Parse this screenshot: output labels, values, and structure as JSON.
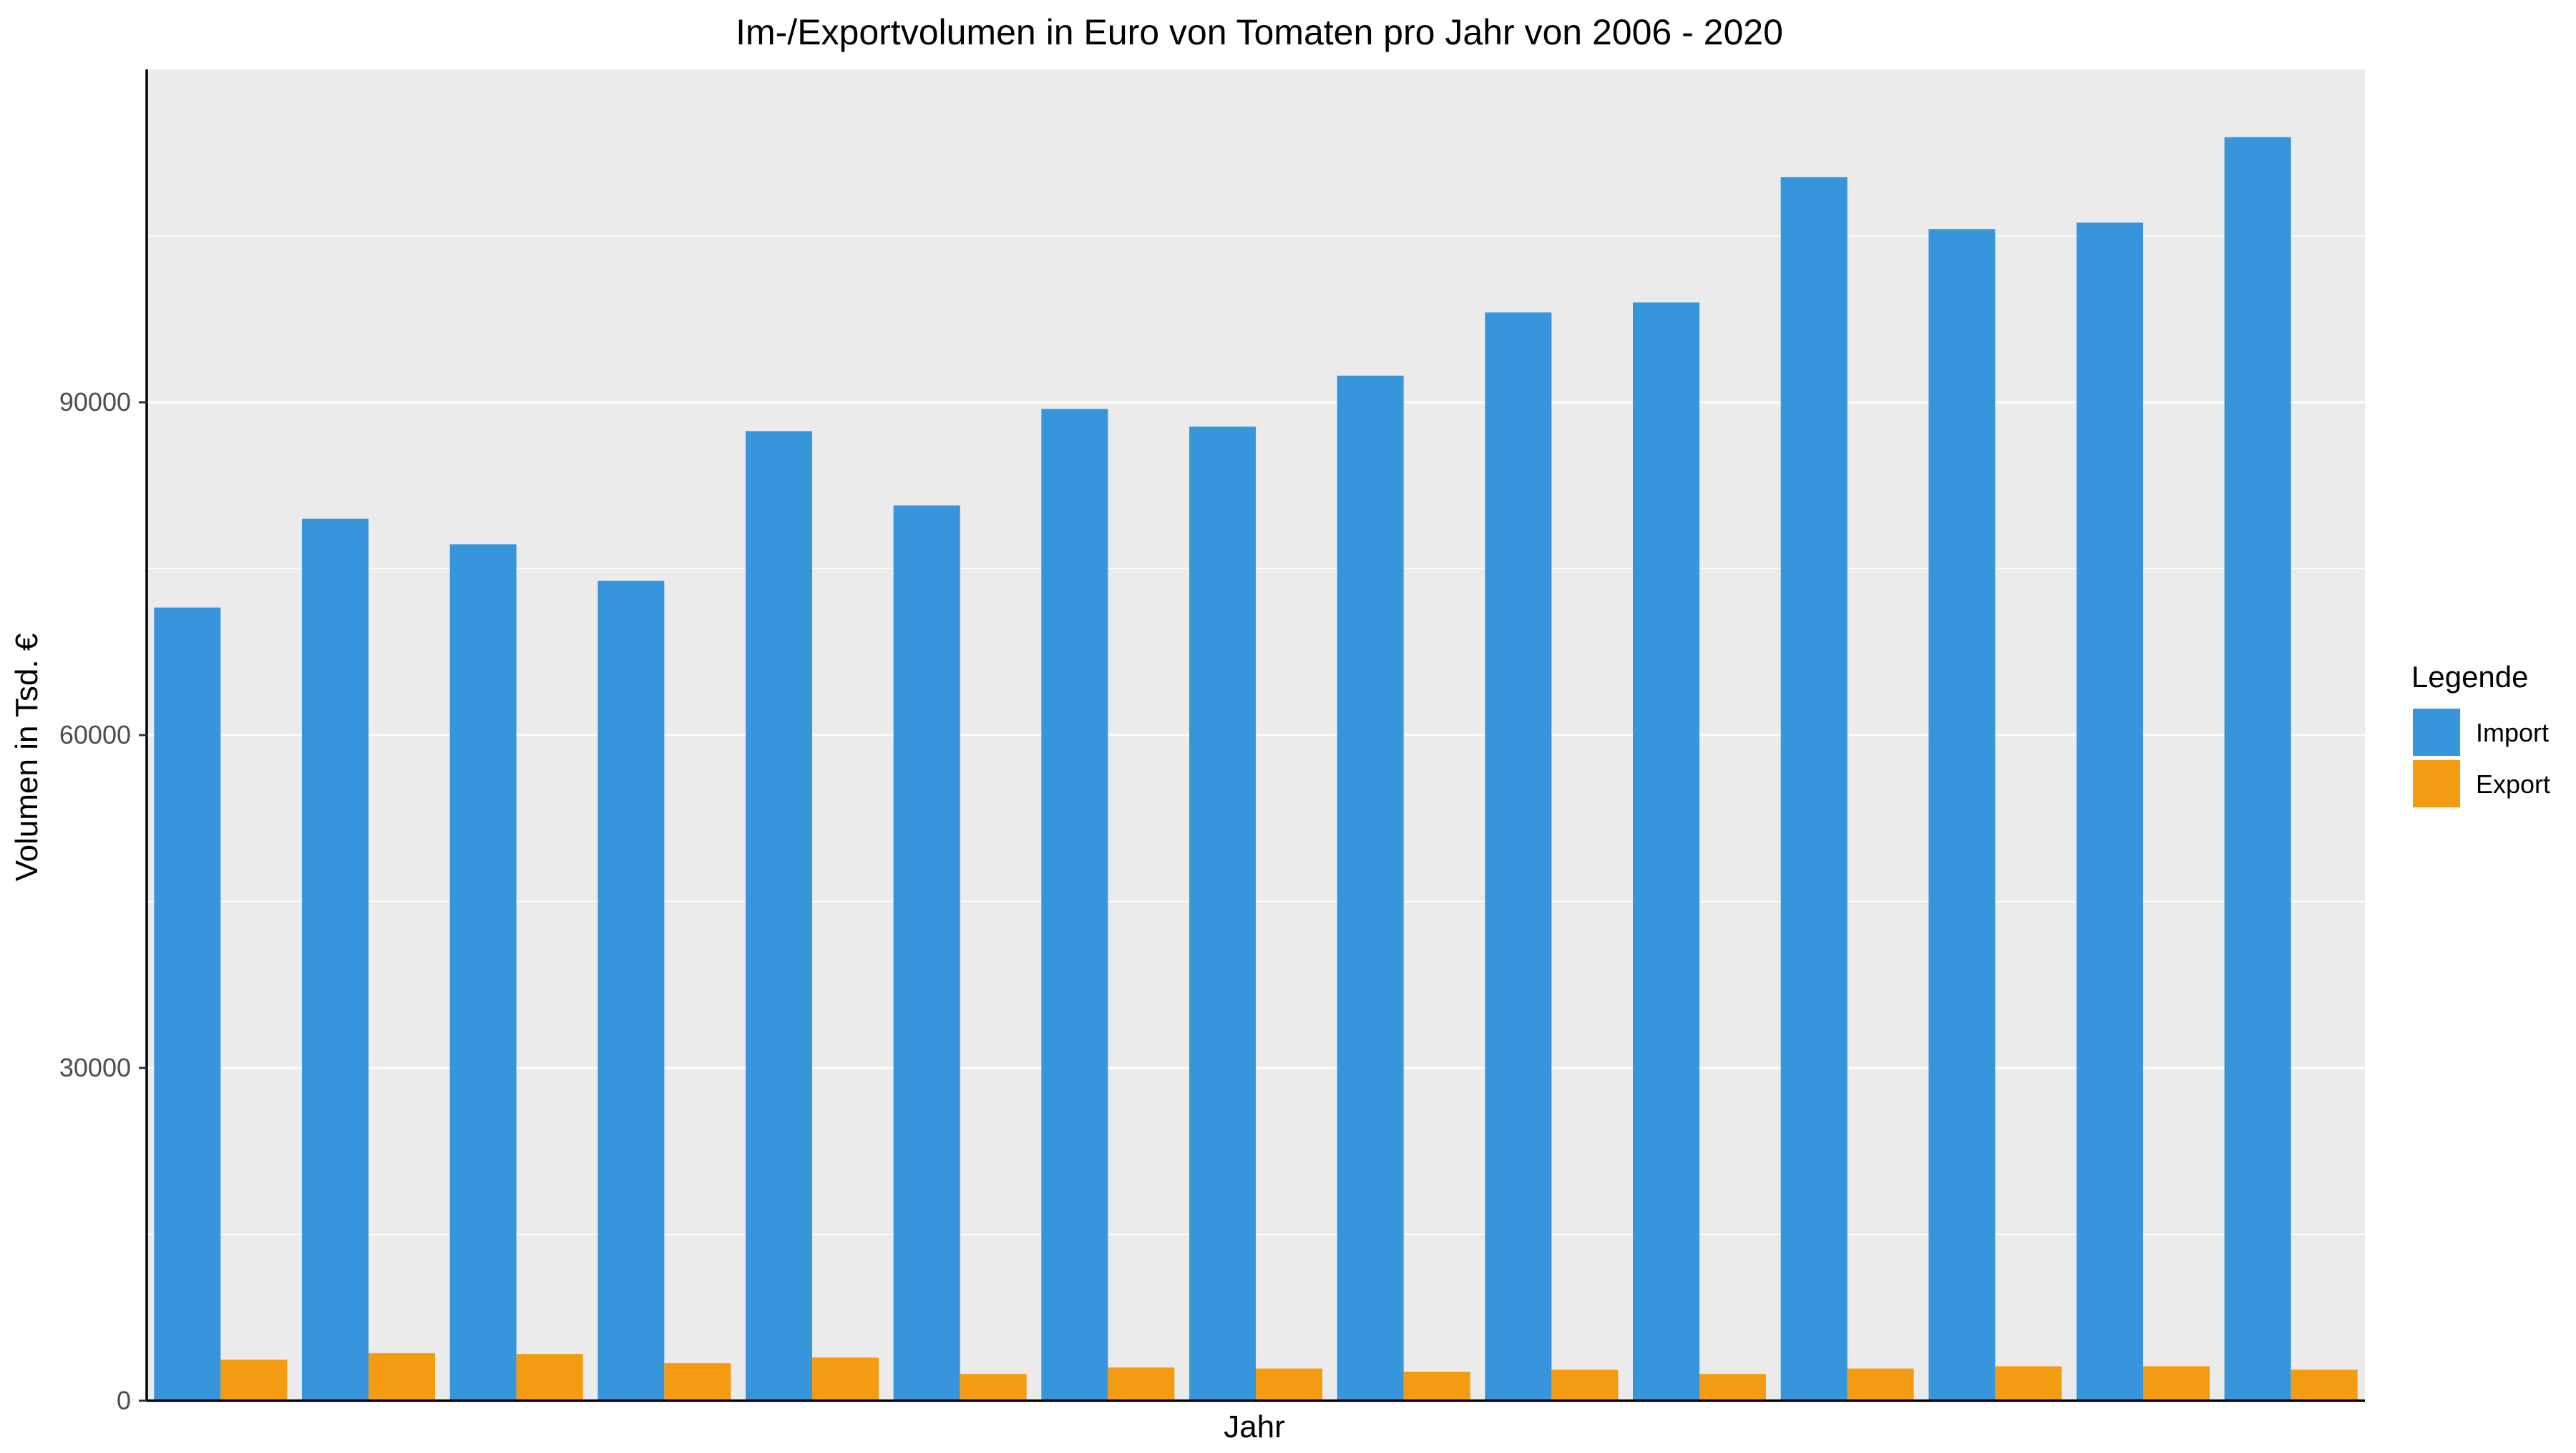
{
  "chart_data": {
    "type": "bar",
    "title": "Im-/Exportvolumen in Euro von Tomaten pro Jahr von 2006 - 2020",
    "xlabel": "Jahr",
    "ylabel": "Volumen in Tsd. €",
    "categories": [
      "",
      "",
      "",
      "",
      "",
      "",
      "",
      "",
      "",
      "",
      "",
      "",
      "",
      "",
      ""
    ],
    "series": [
      {
        "name": "Import",
        "color": "#3796db",
        "values": [
          71500,
          79500,
          77200,
          73900,
          87400,
          80700,
          89400,
          87800,
          92400,
          98100,
          99000,
          110300,
          105600,
          106200,
          113900
        ]
      },
      {
        "name": "Export",
        "color": "#f39c12",
        "values": [
          3700,
          4300,
          4200,
          3400,
          3900,
          2400,
          3000,
          2900,
          2600,
          2800,
          2400,
          2900,
          3100,
          3100,
          2800
        ]
      }
    ],
    "ylim": [
      0,
      120000
    ],
    "yticks": [
      0,
      30000,
      60000,
      90000
    ],
    "yticks_minor": [
      15000,
      45000,
      75000,
      105000
    ],
    "ytick_labels": [
      "0",
      "30000",
      "60000",
      "90000"
    ],
    "grid": true,
    "panel_background": "#ebebeb",
    "grid_color": "#ffffff",
    "legend": {
      "title": "Legende",
      "position": "right",
      "entries": [
        "Import",
        "Export"
      ]
    }
  }
}
